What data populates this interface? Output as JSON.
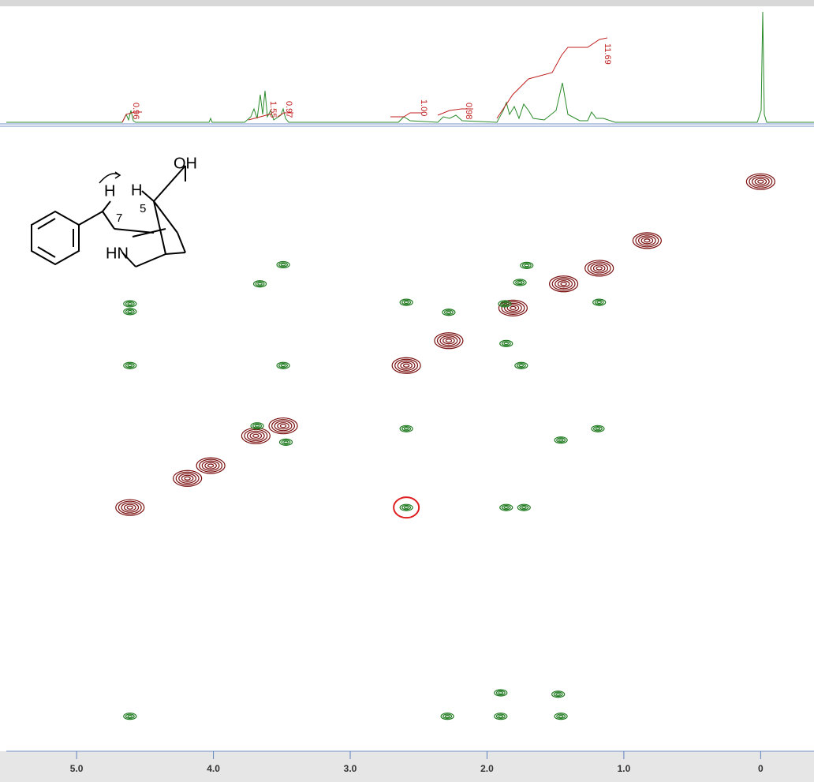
{
  "axis": {
    "xlim": [
      5.56,
      -0.39
    ],
    "ylim": [
      -0.78,
      8.0
    ],
    "ticks": [
      {
        "value": 5,
        "label": "5.0"
      },
      {
        "value": 4,
        "label": "4.0"
      },
      {
        "value": 3,
        "label": "3.0"
      },
      {
        "value": 2,
        "label": "2.0"
      },
      {
        "value": 1,
        "label": "1.0"
      },
      0
    ]
  },
  "colors": {
    "diagonal": "#7a0f0f",
    "cross": "#1f7a1f",
    "highlight": "#e02020"
  },
  "integrals": [
    "0.96",
    "1.55",
    "0.97",
    "1.00",
    "0.98",
    "11.69"
  ],
  "structure": {
    "labels": [
      "OH",
      "H",
      "H",
      "7",
      "5",
      "HN"
    ]
  },
  "diagonal_peaks": [
    [
      0,
      0
    ],
    [
      0.83,
      0.83
    ],
    [
      1.18,
      1.22
    ],
    [
      1.44,
      1.44
    ],
    [
      1.81,
      1.78
    ],
    [
      2.28,
      2.24
    ],
    [
      2.59,
      2.59
    ],
    [
      3.49,
      3.44
    ],
    [
      3.69,
      3.58
    ],
    [
      4.02,
      4.0
    ],
    [
      4.19,
      4.18
    ],
    [
      4.61,
      4.59
    ]
  ],
  "cross_peaks": [
    [
      3.49,
      1.17
    ],
    [
      3.66,
      1.44
    ],
    [
      4.61,
      1.72
    ],
    [
      4.61,
      1.83
    ],
    [
      4.61,
      2.59
    ],
    [
      3.49,
      2.59
    ],
    [
      2.59,
      1.7
    ],
    [
      2.28,
      1.84
    ],
    [
      1.71,
      1.18
    ],
    [
      1.76,
      1.42
    ],
    [
      1.87,
      1.72
    ],
    [
      1.18,
      1.7
    ],
    [
      1.86,
      2.28
    ],
    [
      1.75,
      2.59
    ],
    [
      2.59,
      3.48
    ],
    [
      1.46,
      3.64
    ],
    [
      1.19,
      3.48
    ],
    [
      3.68,
      3.44
    ],
    [
      3.47,
      3.67
    ],
    [
      2.59,
      4.59
    ],
    [
      1.86,
      4.59
    ],
    [
      1.73,
      4.59
    ],
    [
      1.48,
      7.22
    ],
    [
      1.9,
      7.2
    ],
    [
      4.61,
      7.53
    ],
    [
      2.29,
      7.53
    ],
    [
      1.9,
      7.53
    ],
    [
      1.46,
      7.53
    ]
  ],
  "highlight": [
    2.59,
    4.59
  ]
}
